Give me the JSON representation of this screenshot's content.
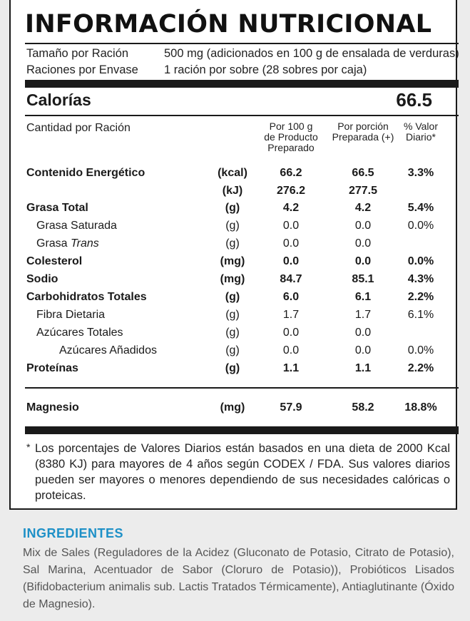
{
  "title": "INFORMACIÓN NUTRICIONAL",
  "serving": {
    "size_label": "Tamaño por Ración",
    "size_value": "500 mg (adicionados en 100 g de ensalada de verduras)",
    "per_container_label": "Raciones por Envase",
    "per_container_value": "1 ración por sobre (28 sobres por caja)"
  },
  "calories": {
    "label": "Calorías",
    "value": "66.5"
  },
  "headers": {
    "amount": "Cantidad por Ración",
    "col1": [
      "Por 100 g",
      "de Producto",
      "Preparado"
    ],
    "col2": [
      "Por porción",
      "Preparada (+)"
    ],
    "col3": [
      "% Valor",
      "Diario*"
    ]
  },
  "nutrients": [
    {
      "name": "Contenido Energético",
      "unit": "(kcal)",
      "v1": "66.2",
      "v2": "66.5",
      "dv": "3.3%"
    },
    {
      "name": "",
      "unit": "(kJ)",
      "v1": "276.2",
      "v2": "277.5",
      "dv": ""
    },
    {
      "name": "Grasa Total",
      "unit": "(g)",
      "v1": "4.2",
      "v2": "4.2",
      "dv": "5.4%"
    },
    {
      "name": "Grasa Saturada",
      "unit": "(g)",
      "v1": "0.0",
      "v2": "0.0",
      "dv": "0.0%"
    },
    {
      "name": "Grasa",
      "name_italic": "Trans",
      "unit": "(g)",
      "v1": "0.0",
      "v2": "0.0",
      "dv": ""
    },
    {
      "name": "Colesterol",
      "unit": "(mg)",
      "v1": "0.0",
      "v2": "0.0",
      "dv": "0.0%"
    },
    {
      "name": "Sodio",
      "unit": "(mg)",
      "v1": "84.7",
      "v2": "85.1",
      "dv": "4.3%"
    },
    {
      "name": "Carbohidratos Totales",
      "unit": "(g)",
      "v1": "6.0",
      "v2": "6.1",
      "dv": "2.2%"
    },
    {
      "name": "Fibra Dietaria",
      "unit": "(g)",
      "v1": "1.7",
      "v2": "1.7",
      "dv": "6.1%"
    },
    {
      "name": "Azúcares Totales",
      "unit": "(g)",
      "v1": "0.0",
      "v2": "0.0",
      "dv": ""
    },
    {
      "name": "Azúcares Añadidos",
      "unit": "(g)",
      "v1": "0.0",
      "v2": "0.0",
      "dv": "0.0%"
    },
    {
      "name": "Proteínas",
      "unit": "(g)",
      "v1": "1.1",
      "v2": "1.1",
      "dv": "2.2%"
    },
    {
      "name": "Magnesio",
      "unit": "(mg)",
      "v1": "57.9",
      "v2": "58.2",
      "dv": "18.8%"
    }
  ],
  "footnote": {
    "star": "*",
    "text": "Los porcentajes de Valores Diarios están basados en una dieta de 2000 Kcal (8380 KJ) para mayores de 4 años según CODEX / FDA. Sus valores diarios pueden ser mayores o menores dependiendo de sus necesidades calóricas o proteicas."
  },
  "ingredients": {
    "title": "INGREDIENTES",
    "text": "Mix de Sales (Reguladores de la Acidez (Gluconato de Potasio, Citrato de Potasio), Sal Marina, Acentuador de Sabor (Cloruro de Potasio)), Probióticos Lisados (Bifidobacterium animalis sub. Lactis Tratados Térmicamente), Antiaglutinante (Óxido de Magnesio)."
  },
  "colors": {
    "ink": "#1a1a1a",
    "accent": "#1e90c7",
    "background": "#ececec"
  }
}
